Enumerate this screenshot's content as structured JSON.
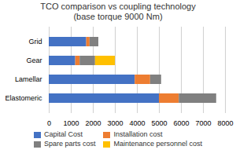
{
  "chart_data": {
    "type": "bar",
    "title": "TCO comparison vs coupling technology\n(base torque 9000 Nm)",
    "orientation": "horizontal",
    "stacked": true,
    "categories": [
      "Elastomeric",
      "Lamellar",
      "Gear",
      "Grid"
    ],
    "series": [
      {
        "name": "Capital Cost",
        "color": "#4472C4",
        "values": [
          5000,
          3900,
          1200,
          1700
        ]
      },
      {
        "name": "Installation cost",
        "color": "#ED7D31",
        "values": [
          900,
          700,
          200,
          150
        ]
      },
      {
        "name": "Spare parts cost",
        "color": "#808080",
        "values": [
          1700,
          500,
          700,
          400
        ]
      },
      {
        "name": "Maintenance personnel cost",
        "color": "#FFC000",
        "values": [
          0,
          0,
          900,
          0
        ]
      }
    ],
    "xlim": [
      0,
      8000
    ],
    "xticks": [
      0,
      1000,
      2000,
      3000,
      4000,
      5000,
      6000,
      7000,
      8000
    ],
    "grid": true,
    "legend": "bottom"
  }
}
